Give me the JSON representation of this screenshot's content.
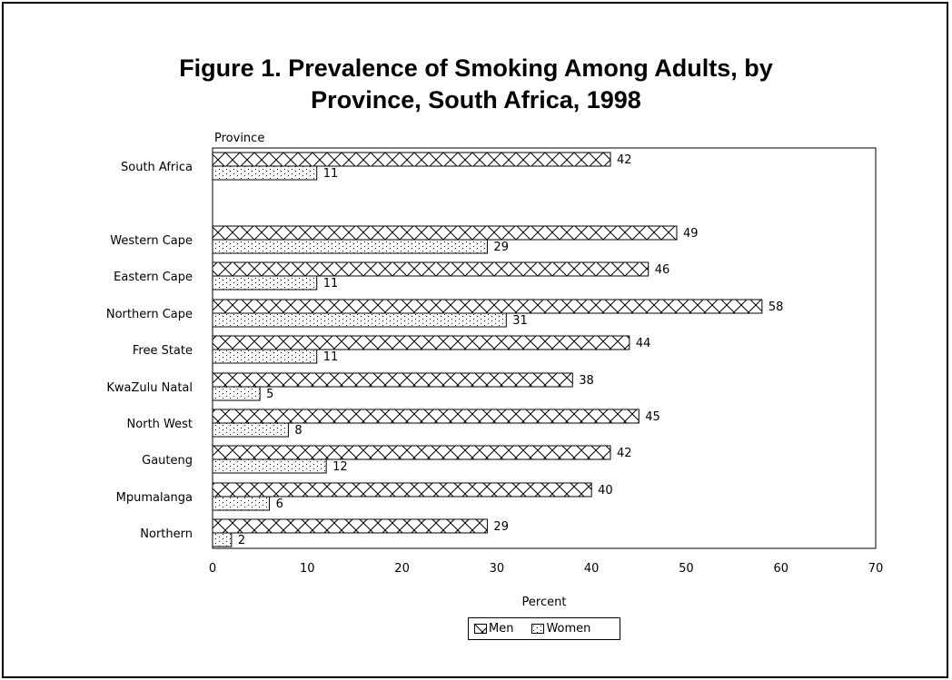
{
  "title": {
    "line1": "Figure 1.  Prevalence of Smoking Among Adults, by",
    "line2": "Province, South Africa, 1998"
  },
  "colors": {
    "bar_fill": "#ffffff",
    "pattern": "#000000"
  },
  "chart_data": {
    "type": "bar",
    "orientation": "horizontal",
    "title": "Figure 1.  Prevalence of Smoking Among Adults, by Province, South Africa, 1998",
    "ylabel": "Province",
    "xlabel": "Percent",
    "xlim": [
      0,
      70
    ],
    "xticks": [
      0,
      10,
      20,
      30,
      40,
      50,
      60,
      70
    ],
    "grid": false,
    "legend_position": "bottom",
    "categories": [
      "South Africa",
      "Western Cape",
      "Eastern Cape",
      "Northern Cape",
      "Free State",
      "KwaZulu Natal",
      "North West",
      "Gauteng",
      "Mpumalanga",
      "Northern"
    ],
    "series": [
      {
        "name": "Men",
        "values": [
          42,
          49,
          46,
          58,
          44,
          38,
          45,
          42,
          40,
          29
        ]
      },
      {
        "name": "Women",
        "values": [
          11,
          29,
          11,
          31,
          11,
          5,
          8,
          12,
          6,
          2
        ]
      }
    ]
  }
}
